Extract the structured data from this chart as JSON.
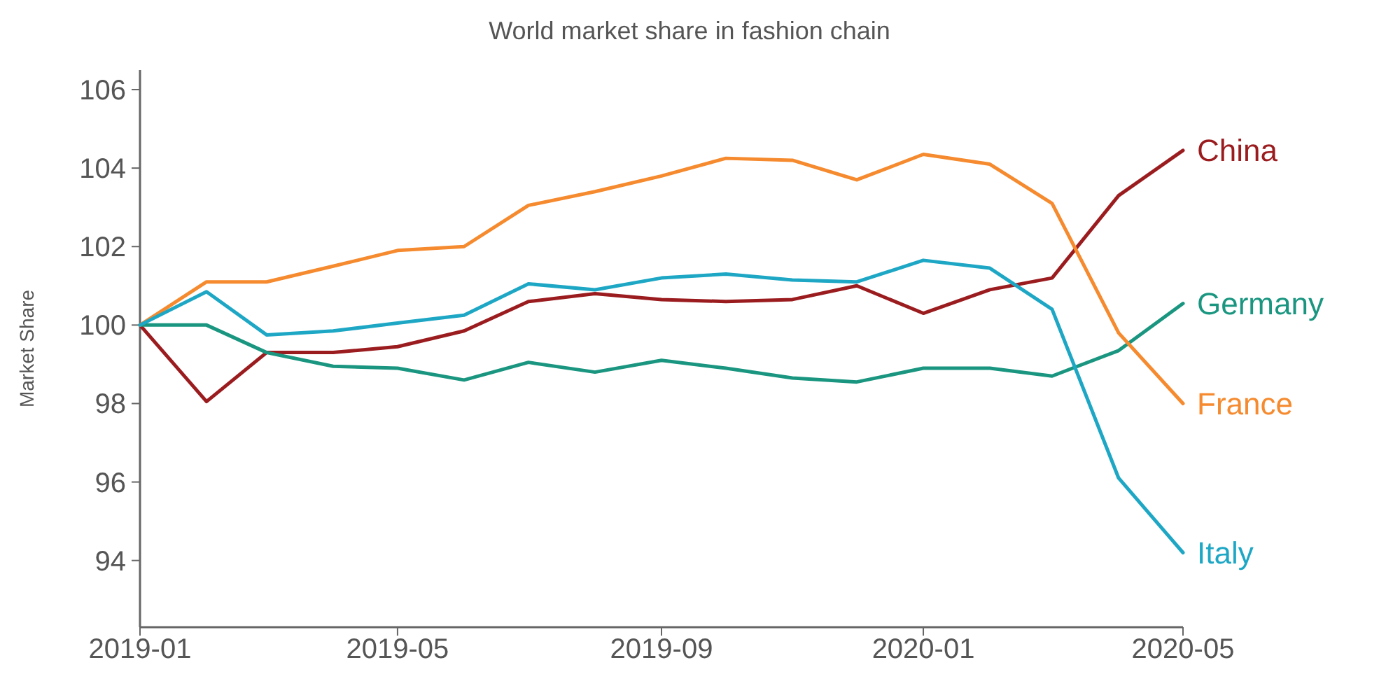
{
  "chart_data": {
    "type": "line",
    "title": "World market share in fashion chain",
    "ylabel": "Market Share",
    "x": [
      "2019-01",
      "2019-02",
      "2019-03",
      "2019-04",
      "2019-05",
      "2019-06",
      "2019-07",
      "2019-08",
      "2019-09",
      "2019-10",
      "2019-11",
      "2019-12",
      "2020-01",
      "2020-02",
      "2020-03",
      "2020-04",
      "2020-05"
    ],
    "series": [
      {
        "name": "China",
        "color": "#9b1c1f",
        "values": [
          100,
          98.05,
          99.3,
          99.3,
          99.45,
          99.85,
          100.6,
          100.8,
          100.65,
          100.6,
          100.65,
          101.0,
          100.3,
          100.9,
          101.2,
          103.3,
          104.45
        ]
      },
      {
        "name": "Germany",
        "color": "#1a9680",
        "values": [
          100,
          100.0,
          99.3,
          98.95,
          98.9,
          98.6,
          99.05,
          98.8,
          99.1,
          98.9,
          98.65,
          98.55,
          98.9,
          98.9,
          98.7,
          99.35,
          100.55
        ]
      },
      {
        "name": "France",
        "color": "#f58a2e",
        "values": [
          100,
          101.1,
          101.1,
          101.5,
          101.9,
          102.0,
          103.05,
          103.4,
          103.8,
          104.25,
          104.2,
          103.7,
          104.35,
          104.1,
          103.1,
          99.8,
          98.0
        ]
      },
      {
        "name": "Italy",
        "color": "#1ea7c5",
        "values": [
          100,
          100.85,
          99.75,
          99.85,
          100.05,
          100.25,
          101.05,
          100.9,
          101.2,
          101.3,
          101.15,
          101.1,
          101.65,
          101.45,
          100.4,
          96.1,
          94.2
        ]
      }
    ],
    "xlim": [
      "2019-01",
      "2020-05"
    ],
    "xticks": [
      "2019-01",
      "2019-05",
      "2019-09",
      "2020-01",
      "2020-05"
    ],
    "ylim": [
      92.3,
      106.5
    ],
    "yticks": [
      94,
      96,
      98,
      100,
      102,
      104,
      106
    ],
    "grid": false,
    "legend": false,
    "marker": "none",
    "line_style": "solid"
  }
}
